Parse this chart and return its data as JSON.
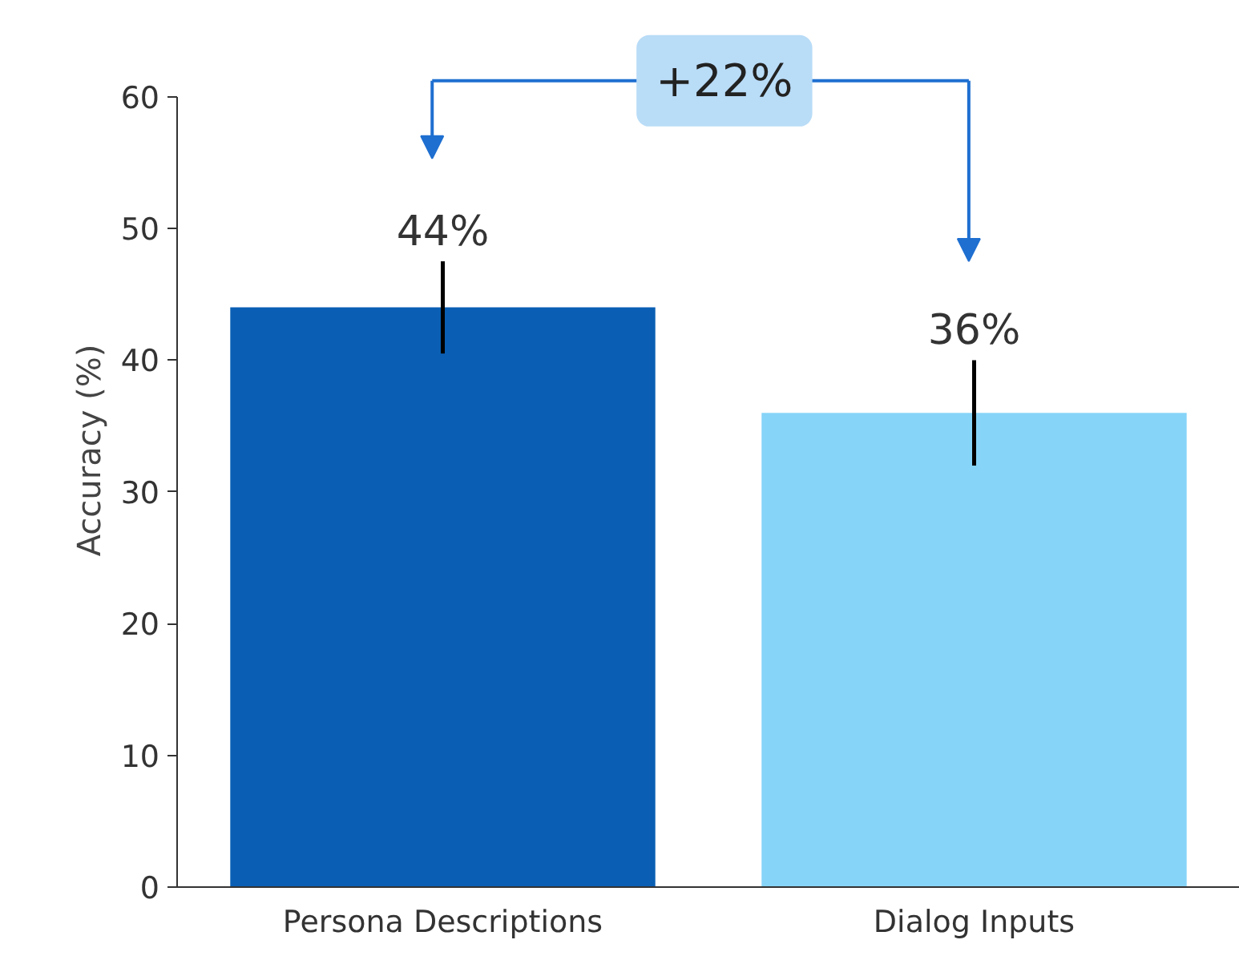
{
  "chart_data": {
    "type": "bar",
    "ylabel": "Accuracy (%)",
    "categories": [
      "Persona Descriptions",
      "Dialog Inputs"
    ],
    "values": [
      44,
      36
    ],
    "colors": [
      "#0a5fb4",
      "#87d4f9"
    ],
    "errors": [
      3.5,
      4
    ],
    "value_labels": [
      "44%",
      "36%"
    ],
    "ylim": [
      0,
      60
    ],
    "yticks": [
      0,
      10,
      20,
      30,
      40,
      50,
      60
    ],
    "grid": false,
    "annotations": [
      "+22%"
    ]
  }
}
